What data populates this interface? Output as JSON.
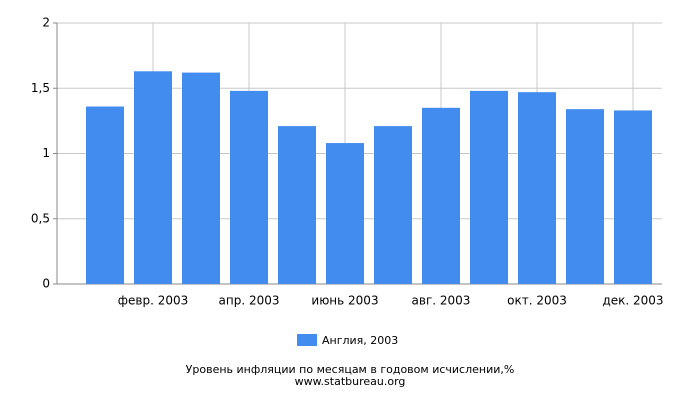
{
  "chart_data": {
    "type": "bar",
    "title": "Уровень инфляции по месяцам в годовом исчислении,%",
    "subtitle": "www.statbureau.org",
    "categories": [
      null,
      "февр. 2003",
      null,
      "апр. 2003",
      null,
      "июнь 2003",
      null,
      "авг. 2003",
      null,
      "окт. 2003",
      null,
      "дек. 2003"
    ],
    "series": [
      {
        "name": "Англия, 2003",
        "color": "#428bef",
        "values": [
          1.36,
          1.63,
          1.62,
          1.48,
          1.21,
          1.08,
          1.21,
          1.35,
          1.48,
          1.47,
          1.34,
          1.33
        ]
      }
    ],
    "ylim": [
      0,
      2
    ],
    "yticks": [
      0,
      {
        "value": 0.5,
        "label": "0,5"
      },
      1,
      {
        "value": 1.5,
        "label": "1,5"
      },
      2
    ],
    "grid": true
  }
}
